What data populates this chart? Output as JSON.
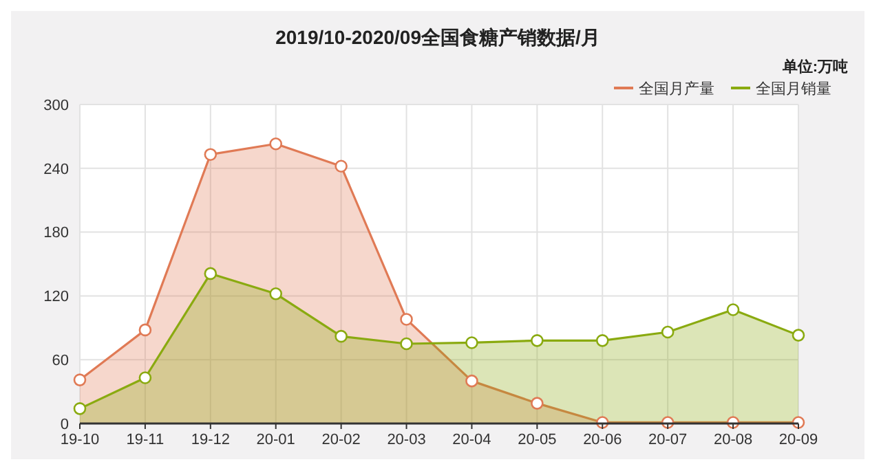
{
  "chart_data": {
    "type": "area",
    "title": "2019/10-2020/09全国食糖产销数据/月",
    "annotations": [
      "单位:万吨"
    ],
    "categories": [
      "19-10",
      "19-11",
      "19-12",
      "20-01",
      "20-02",
      "20-03",
      "20-04",
      "20-05",
      "20-06",
      "20-07",
      "20-08",
      "20-09"
    ],
    "series": [
      {
        "name": "全国月产量",
        "color": "#e07a55",
        "values": [
          41,
          88,
          253,
          263,
          242,
          98,
          40,
          19,
          1,
          1,
          1,
          1
        ]
      },
      {
        "name": "全国月销量",
        "color": "#8aaa10",
        "values": [
          14,
          43,
          141,
          122,
          82,
          75,
          76,
          78,
          78,
          86,
          107,
          83
        ]
      }
    ],
    "ylim": [
      0,
      300
    ],
    "yticks": [
      0,
      60,
      120,
      180,
      240,
      300
    ],
    "grid": true,
    "legend": "top right",
    "marker": "circle"
  }
}
